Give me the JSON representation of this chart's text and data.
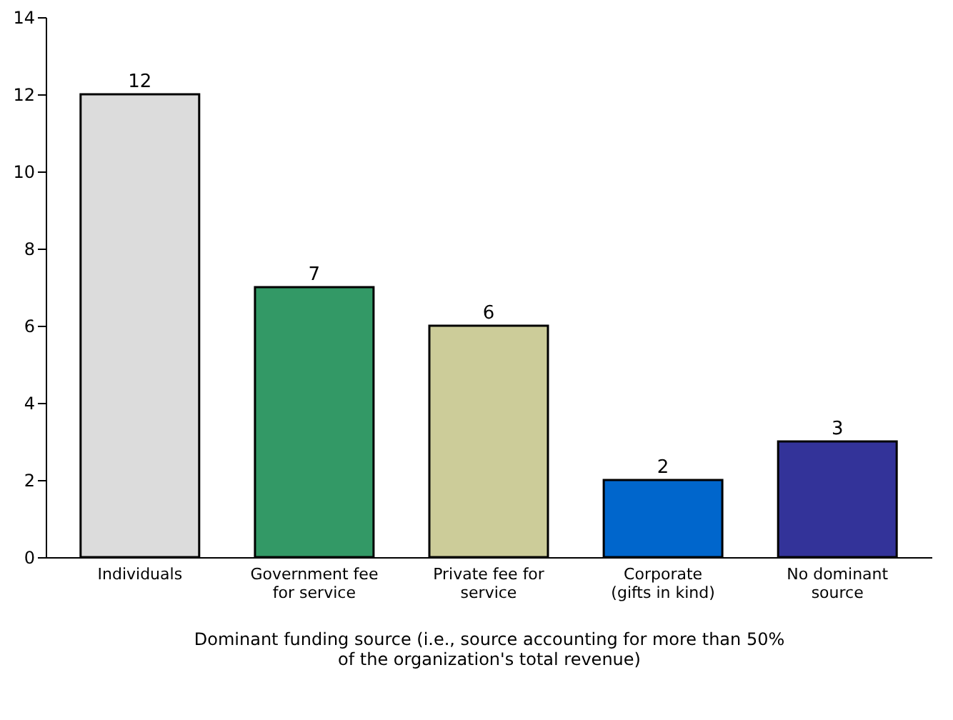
{
  "chart_data": {
    "type": "bar",
    "xlabel": "Dominant funding source (i.e., source accounting for more than 50% of the organization's total revenue)",
    "categories": [
      "Individuals",
      "Government fee for service",
      "Private fee for service",
      "Corporate (gifts in kind)",
      "No dominant source"
    ],
    "values": [
      12,
      7,
      6,
      2,
      3
    ],
    "colors": [
      "#dcdcdc",
      "#339966",
      "#cccc99",
      "#0066cc",
      "#333399"
    ],
    "ylim": [
      0,
      14
    ],
    "yticks": [
      0,
      2,
      4,
      6,
      8,
      10,
      12,
      14
    ],
    "data_labels": true,
    "grid": false,
    "legend": false
  }
}
